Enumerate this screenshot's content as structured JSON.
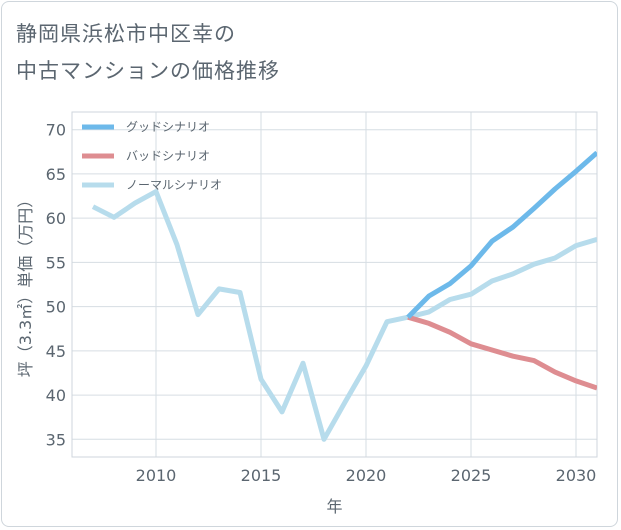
{
  "header": {
    "title_line1": "静岡県浜松市中区幸の",
    "title_line2": "中古マンションの価格推移"
  },
  "colors": {
    "good": "#6db9ea",
    "bad": "#de8d91",
    "normal": "#b7dcec",
    "grid": "#d6dde3",
    "axis": "#5b6670"
  },
  "chart_data": {
    "type": "line",
    "title": "静岡県浜松市中区幸の中古マンションの価格推移",
    "xlabel": "年",
    "ylabel": "坪（3.3㎡）単価（万円）",
    "xlim": [
      2006,
      2031
    ],
    "ylim": [
      33,
      72
    ],
    "xticks": [
      2010,
      2015,
      2020,
      2025,
      2030
    ],
    "yticks": [
      35,
      40,
      45,
      50,
      55,
      60,
      65,
      70
    ],
    "legend_position": "top-left",
    "series": [
      {
        "key": "good",
        "name": "グッドシナリオ",
        "x": [
          2022,
          2023,
          2024,
          2025,
          2026,
          2027,
          2028,
          2029,
          2030,
          2031
        ],
        "values": [
          48.8,
          51.2,
          52.6,
          54.6,
          57.4,
          59.0,
          61.1,
          63.3,
          65.3,
          67.4
        ]
      },
      {
        "key": "bad",
        "name": "バッドシナリオ",
        "x": [
          2022,
          2023,
          2024,
          2025,
          2026,
          2027,
          2028,
          2029,
          2030,
          2031
        ],
        "values": [
          48.8,
          48.1,
          47.1,
          45.8,
          45.1,
          44.4,
          43.9,
          42.6,
          41.6,
          40.8
        ]
      },
      {
        "key": "normal",
        "name": "ノーマルシナリオ",
        "x": [
          2007,
          2008,
          2009,
          2010,
          2011,
          2012,
          2013,
          2014,
          2015,
          2016,
          2017,
          2018,
          2019,
          2020,
          2021,
          2022,
          2023,
          2024,
          2025,
          2026,
          2027,
          2028,
          2029,
          2030,
          2031
        ],
        "values": [
          61.3,
          60.1,
          61.7,
          63.0,
          57.0,
          49.1,
          52.0,
          51.6,
          41.8,
          38.1,
          43.6,
          35.0,
          39.2,
          43.3,
          48.3,
          48.8,
          49.4,
          50.8,
          51.4,
          52.9,
          53.7,
          54.8,
          55.5,
          56.9,
          57.6
        ]
      }
    ]
  }
}
